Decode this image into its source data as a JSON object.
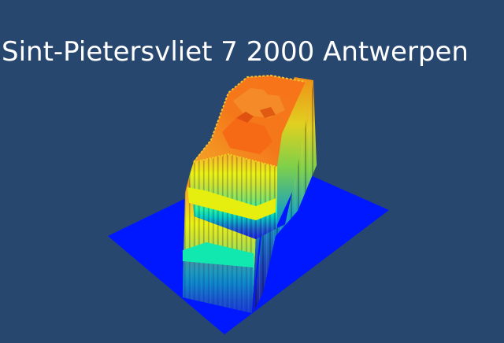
{
  "title": "Sint-Pietersvliet 7 2000 Antwerpen",
  "colors": {
    "background": "#28476f",
    "ground": "#0018ff",
    "title_text": "#ffffff",
    "height_low": "#0000ff",
    "height_mid": "#00ffb0",
    "height_midhigh": "#f0f000",
    "height_high": "#ff7800"
  }
}
